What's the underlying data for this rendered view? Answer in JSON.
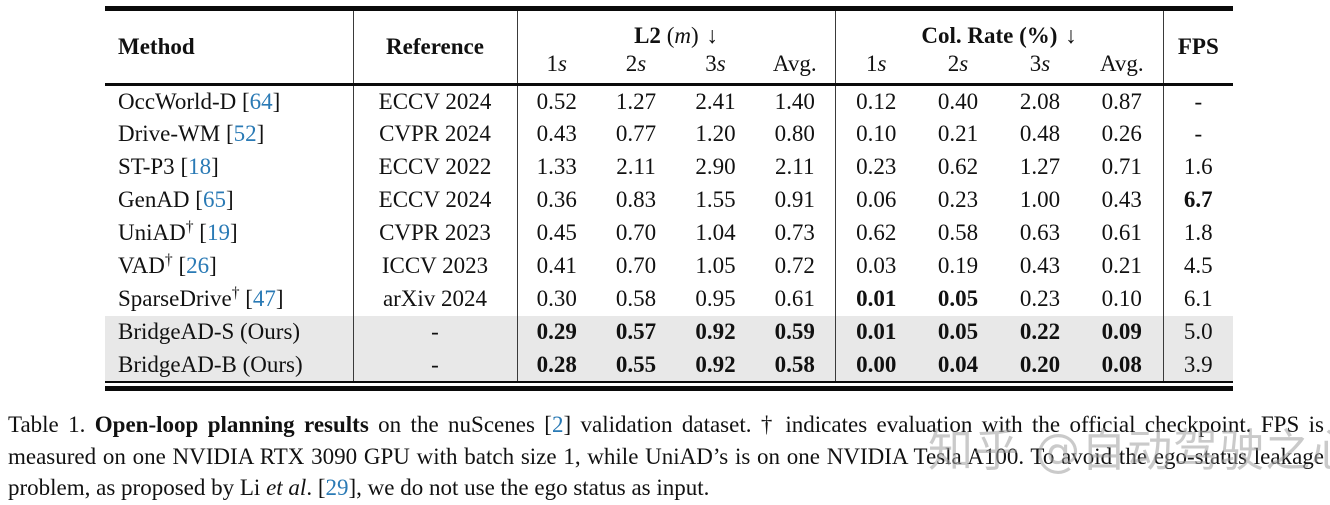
{
  "colors": {
    "cite_blue": "#2a7ab5",
    "highlight_row_bg": "#e8e8e8",
    "rule_black": "#0a0a0a",
    "watermark_gray": "#a0a0a0"
  },
  "table": {
    "dagger_symbol": "†",
    "cite_open": "[",
    "cite_close": "]",
    "headers": {
      "method": "Method",
      "reference": "Reference",
      "fps": "FPS",
      "l2": {
        "name": "L2",
        "open": "(",
        "unit": "m",
        "close": ")",
        "arrow": "↓"
      },
      "col_rate": {
        "name": "Col. Rate (%)",
        "arrow": "↓"
      },
      "sub": [
        {
          "num": "1",
          "var": "s"
        },
        {
          "num": "2",
          "var": "s"
        },
        {
          "num": "3",
          "var": "s"
        },
        {
          "num": "Avg.",
          "var": ""
        }
      ]
    },
    "rows": [
      {
        "method": "OccWorld-D",
        "dagger": false,
        "cite": "64",
        "ref": "ECCV 2024",
        "l2": [
          "0.52",
          "1.27",
          "2.41",
          "1.40"
        ],
        "l2_b": [
          false,
          false,
          false,
          false
        ],
        "col": [
          "0.12",
          "0.40",
          "2.08",
          "0.87"
        ],
        "col_b": [
          false,
          false,
          false,
          false
        ],
        "fps": "-",
        "fps_b": false,
        "highlight": false
      },
      {
        "method": "Drive-WM",
        "dagger": false,
        "cite": "52",
        "ref": "CVPR 2024",
        "l2": [
          "0.43",
          "0.77",
          "1.20",
          "0.80"
        ],
        "l2_b": [
          false,
          false,
          false,
          false
        ],
        "col": [
          "0.10",
          "0.21",
          "0.48",
          "0.26"
        ],
        "col_b": [
          false,
          false,
          false,
          false
        ],
        "fps": "-",
        "fps_b": false,
        "highlight": false
      },
      {
        "method": "ST-P3",
        "dagger": false,
        "cite": "18",
        "ref": "ECCV 2022",
        "l2": [
          "1.33",
          "2.11",
          "2.90",
          "2.11"
        ],
        "l2_b": [
          false,
          false,
          false,
          false
        ],
        "col": [
          "0.23",
          "0.62",
          "1.27",
          "0.71"
        ],
        "col_b": [
          false,
          false,
          false,
          false
        ],
        "fps": "1.6",
        "fps_b": false,
        "highlight": false
      },
      {
        "method": "GenAD",
        "dagger": false,
        "cite": "65",
        "ref": "ECCV 2024",
        "l2": [
          "0.36",
          "0.83",
          "1.55",
          "0.91"
        ],
        "l2_b": [
          false,
          false,
          false,
          false
        ],
        "col": [
          "0.06",
          "0.23",
          "1.00",
          "0.43"
        ],
        "col_b": [
          false,
          false,
          false,
          false
        ],
        "fps": "6.7",
        "fps_b": true,
        "highlight": false
      },
      {
        "method": "UniAD",
        "dagger": true,
        "cite": "19",
        "ref": "CVPR 2023",
        "l2": [
          "0.45",
          "0.70",
          "1.04",
          "0.73"
        ],
        "l2_b": [
          false,
          false,
          false,
          false
        ],
        "col": [
          "0.62",
          "0.58",
          "0.63",
          "0.61"
        ],
        "col_b": [
          false,
          false,
          false,
          false
        ],
        "fps": "1.8",
        "fps_b": false,
        "highlight": false
      },
      {
        "method": "VAD",
        "dagger": true,
        "cite": "26",
        "ref": "ICCV 2023",
        "l2": [
          "0.41",
          "0.70",
          "1.05",
          "0.72"
        ],
        "l2_b": [
          false,
          false,
          false,
          false
        ],
        "col": [
          "0.03",
          "0.19",
          "0.43",
          "0.21"
        ],
        "col_b": [
          false,
          false,
          false,
          false
        ],
        "fps": "4.5",
        "fps_b": false,
        "highlight": false
      },
      {
        "method": "SparseDrive",
        "dagger": true,
        "cite": "47",
        "ref": "arXiv 2024",
        "l2": [
          "0.30",
          "0.58",
          "0.95",
          "0.61"
        ],
        "l2_b": [
          false,
          false,
          false,
          false
        ],
        "col": [
          "0.01",
          "0.05",
          "0.23",
          "0.10"
        ],
        "col_b": [
          true,
          true,
          false,
          false
        ],
        "fps": "6.1",
        "fps_b": false,
        "highlight": false
      },
      {
        "method": "BridgeAD-S (Ours)",
        "dagger": false,
        "cite": null,
        "ref": "-",
        "l2": [
          "0.29",
          "0.57",
          "0.92",
          "0.59"
        ],
        "l2_b": [
          true,
          true,
          true,
          true
        ],
        "col": [
          "0.01",
          "0.05",
          "0.22",
          "0.09"
        ],
        "col_b": [
          true,
          true,
          true,
          true
        ],
        "fps": "5.0",
        "fps_b": false,
        "highlight": true
      },
      {
        "method": "BridgeAD-B (Ours)",
        "dagger": false,
        "cite": null,
        "ref": "-",
        "l2": [
          "0.28",
          "0.55",
          "0.92",
          "0.58"
        ],
        "l2_b": [
          true,
          true,
          true,
          true
        ],
        "col": [
          "0.00",
          "0.04",
          "0.20",
          "0.08"
        ],
        "col_b": [
          true,
          true,
          true,
          true
        ],
        "fps": "3.9",
        "fps_b": false,
        "highlight": true
      }
    ]
  },
  "caption": {
    "segments": [
      {
        "t": "Table 1.  ",
        "style": "normal"
      },
      {
        "t": "Open-loop planning results",
        "style": "bold"
      },
      {
        "t": " on the nuScenes [",
        "style": "normal"
      },
      {
        "t": "2",
        "style": "cite"
      },
      {
        "t": "] validation dataset.  † indicates evaluation with the official checkpoint.  FPS is measured on one NVIDIA RTX 3090 GPU with batch size 1, while UniAD’s is on one NVIDIA Tesla A100. To avoid the ego-status leakage problem, as proposed by Li ",
        "style": "normal"
      },
      {
        "t": "et al",
        "style": "italic"
      },
      {
        "t": ". [",
        "style": "normal"
      },
      {
        "t": "29",
        "style": "cite"
      },
      {
        "t": "], we do not use the ego status as input.",
        "style": "normal"
      }
    ]
  },
  "watermark": {
    "text": "知乎 @自动驾驶之心"
  }
}
